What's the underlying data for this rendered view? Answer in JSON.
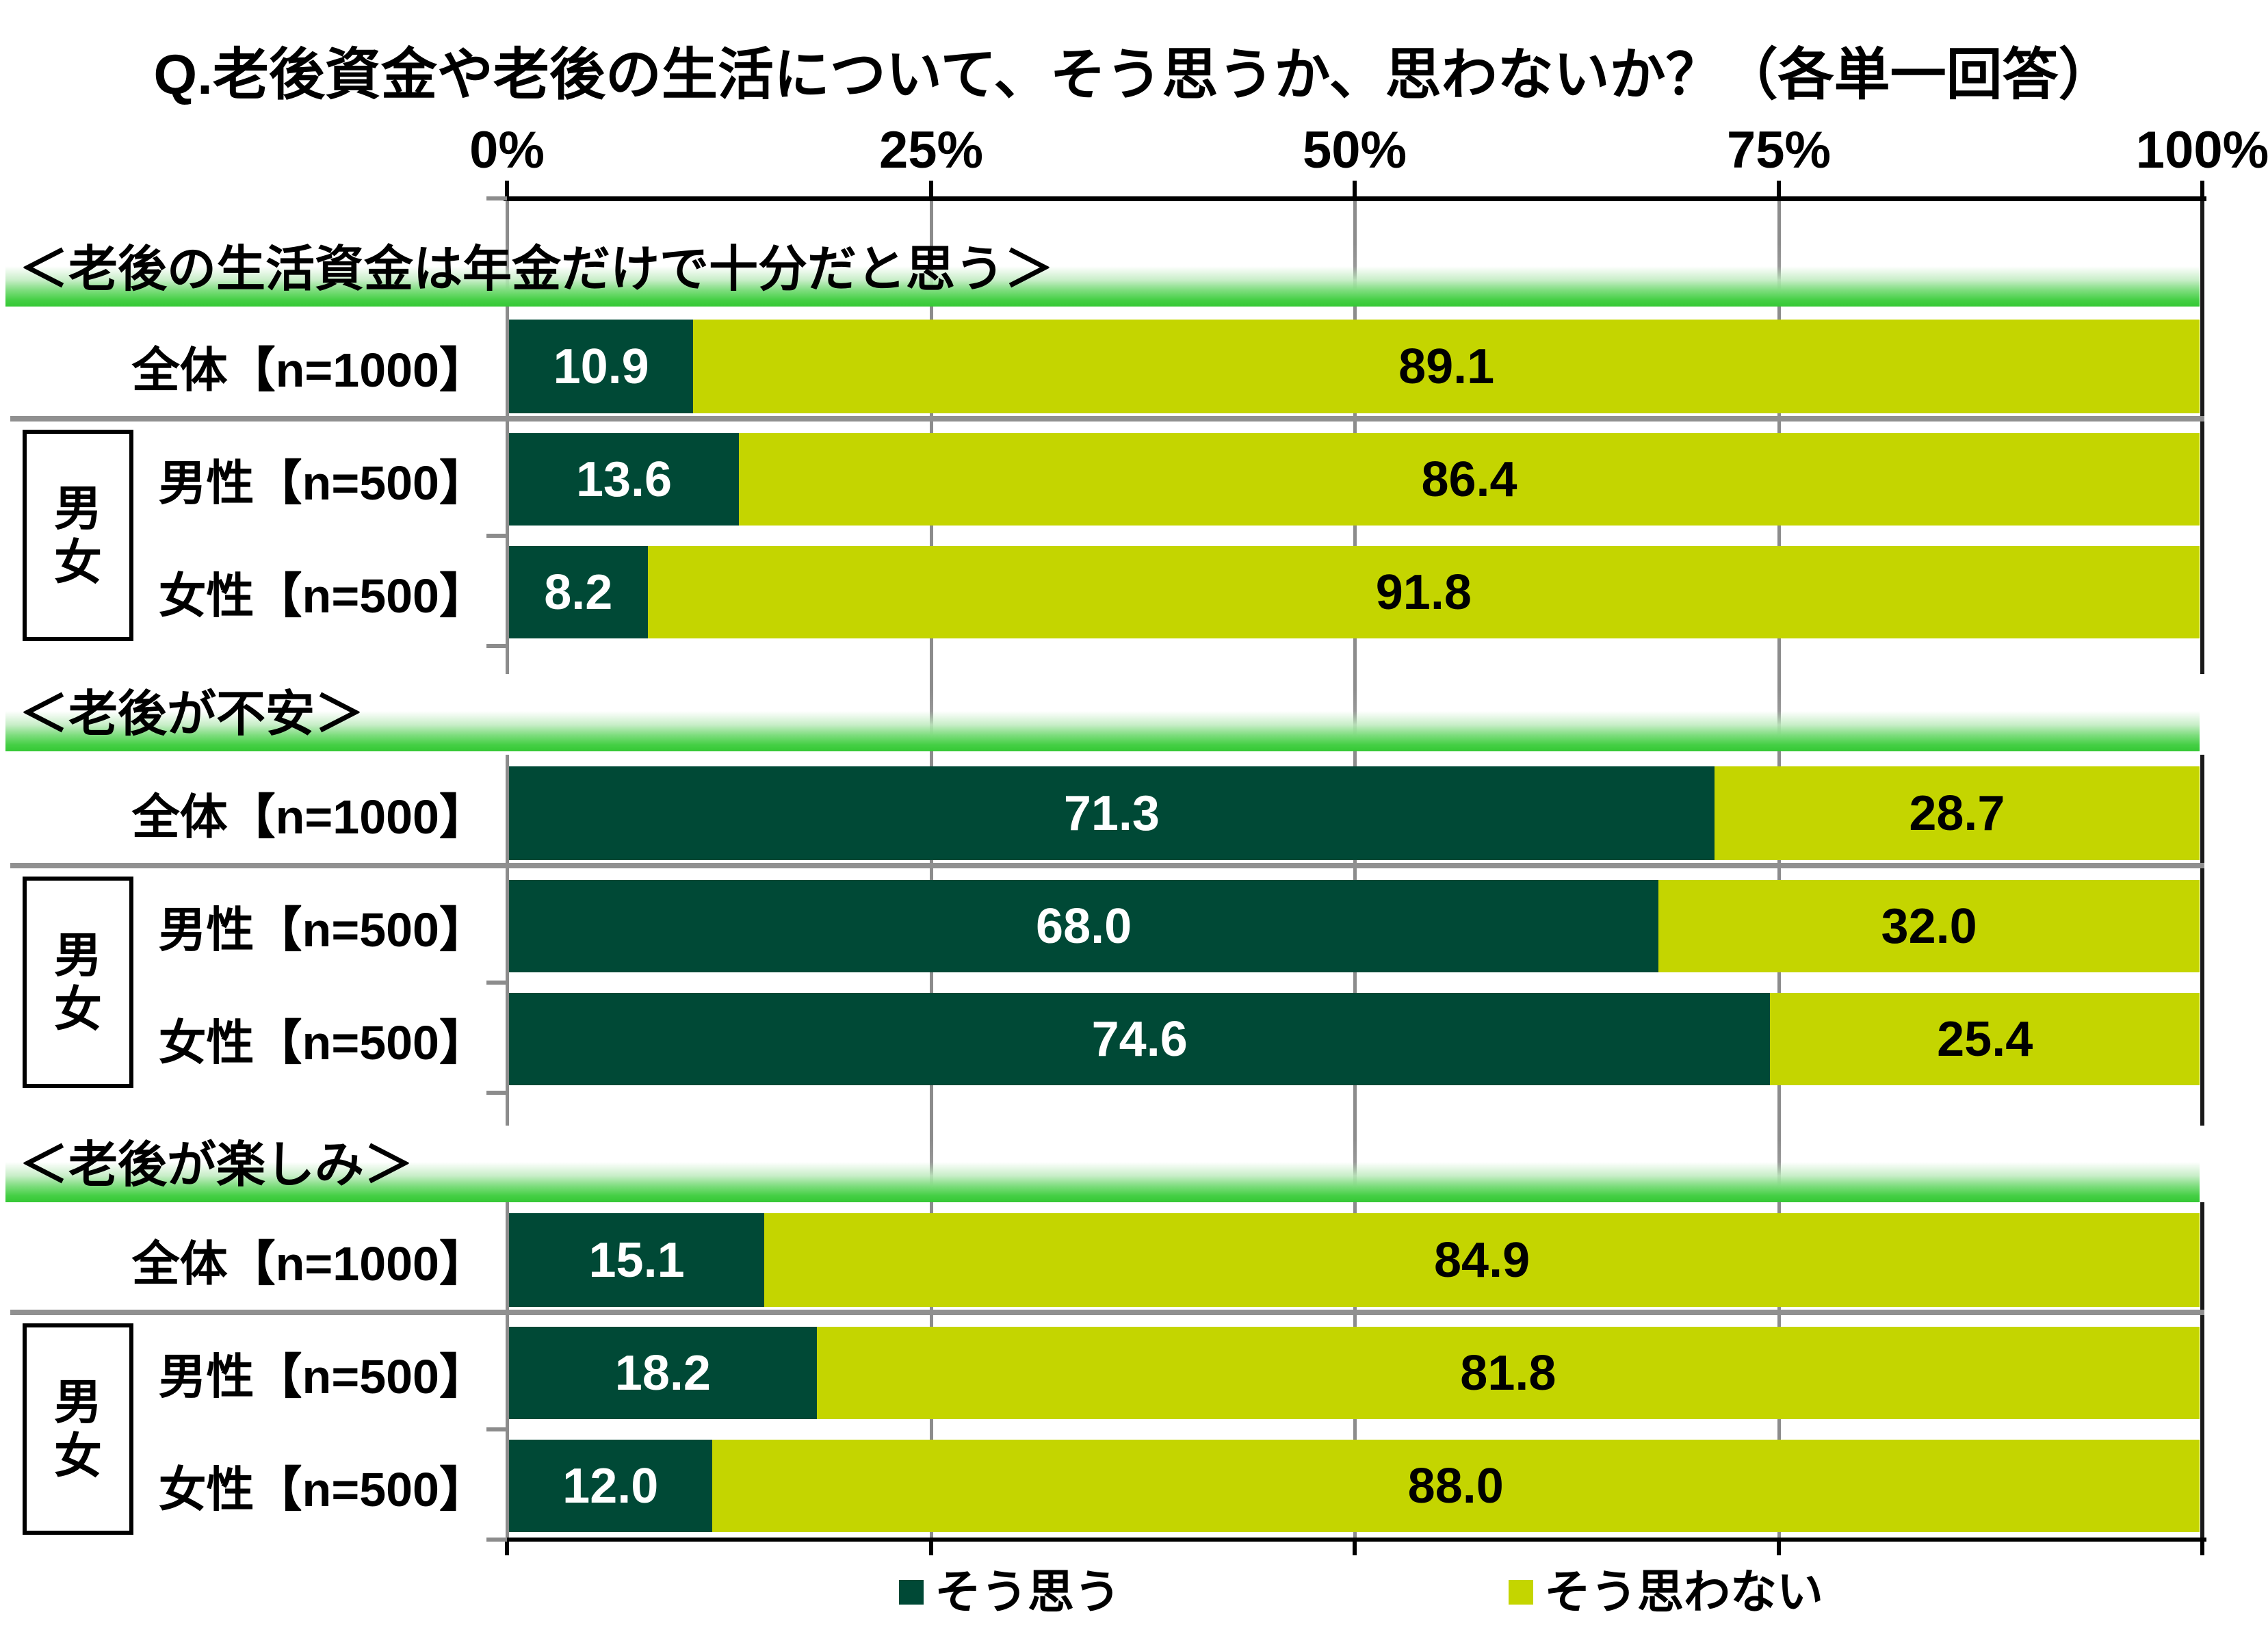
{
  "title": "Q.老後資金や老後の生活について、そう思うか、思わないか？（各単一回答）",
  "colors": {
    "agree": "#004936",
    "disagree": "#c4d500",
    "header_green": "#35c835",
    "grid_gray": "#8c8c8c",
    "separator_gray": "#909090",
    "axis_black": "#000000",
    "right_border": "#1a1a1a",
    "value_text_on_agree": "#ffffff",
    "value_text_on_disagree": "#000000"
  },
  "legend": {
    "items": [
      {
        "label": "そう思う",
        "color_key": "agree"
      },
      {
        "label": "そう思わない",
        "color_key": "disagree"
      }
    ]
  },
  "chart_data": {
    "type": "bar",
    "orientation": "horizontal",
    "stacked": true,
    "unit": "%",
    "xlim": [
      0,
      100
    ],
    "x_ticks": [
      "0%",
      "25%",
      "50%",
      "75%",
      "100%"
    ],
    "grid": true,
    "legend_position": "bottom",
    "group_label": "男女",
    "series_names": [
      "そう思う",
      "そう思わない"
    ],
    "sections": [
      {
        "header": "＜老後の生活資金は年金だけで十分だと思う＞",
        "rows": [
          {
            "label": "全体【n=1000】",
            "values": [
              10.9,
              89.1
            ]
          },
          {
            "label": "男性【n=500】",
            "values": [
              13.6,
              86.4
            ]
          },
          {
            "label": "女性【n=500】",
            "values": [
              8.2,
              91.8
            ]
          }
        ]
      },
      {
        "header": "＜老後が不安＞",
        "rows": [
          {
            "label": "全体【n=1000】",
            "values": [
              71.3,
              28.7
            ]
          },
          {
            "label": "男性【n=500】",
            "values": [
              68.0,
              32.0
            ]
          },
          {
            "label": "女性【n=500】",
            "values": [
              74.6,
              25.4
            ]
          }
        ]
      },
      {
        "header": "＜老後が楽しみ＞",
        "rows": [
          {
            "label": "全体【n=1000】",
            "values": [
              15.1,
              84.9
            ]
          },
          {
            "label": "男性【n=500】",
            "values": [
              18.2,
              81.8
            ]
          },
          {
            "label": "女性【n=500】",
            "values": [
              12.0,
              88.0
            ]
          }
        ]
      }
    ]
  }
}
